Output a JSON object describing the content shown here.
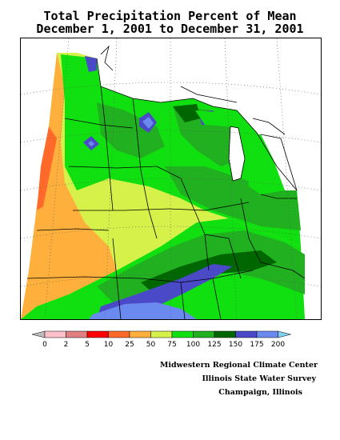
{
  "title": {
    "line1": "Total Precipitation Percent of Mean",
    "line2": "December 1, 2001 to December 31, 2001"
  },
  "legend": {
    "ticks": [
      "0",
      "2",
      "5",
      "10",
      "25",
      "50",
      "75",
      "100",
      "125",
      "150",
      "175",
      "200"
    ],
    "colors": [
      "#bdbdbd",
      "#ffc0cb",
      "#e08080",
      "#ff0000",
      "#ff6a2a",
      "#ffb03c",
      "#d6f24a",
      "#10e010",
      "#20b020",
      "#006600",
      "#4a4ac8",
      "#6a8af0",
      "#80d0f0"
    ]
  },
  "credits": {
    "line1": "Midwestern Regional Climate Center",
    "line2": "Illinois State Water Survey",
    "line3": "Champaign, Illinois"
  },
  "map": {
    "region": "Midwest United States",
    "colors": {
      "lake": "#ffffff",
      "orange": "#ffb03c",
      "red_orange": "#ff6a2a",
      "yellow_green": "#d6f24a",
      "green": "#10e010",
      "mid_green": "#20b020",
      "dark_green": "#006600",
      "blue": "#4a4ac8",
      "light_blue": "#6a8af0"
    }
  }
}
